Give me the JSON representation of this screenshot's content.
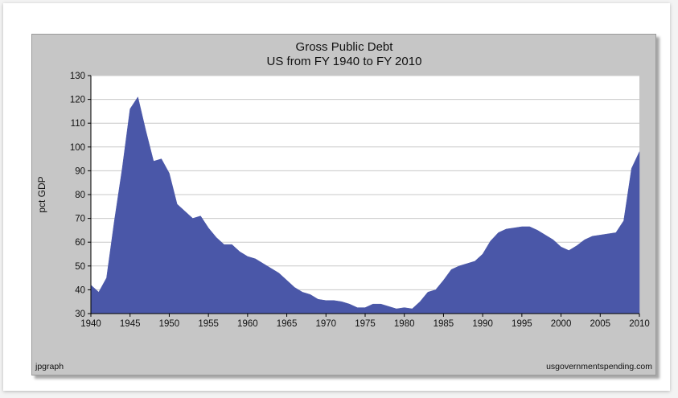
{
  "chart_data": {
    "type": "area",
    "title": "Gross Public Debt",
    "subtitle": "US from FY 1940 to FY 2010",
    "xlabel": "",
    "ylabel": "pct GDP",
    "xlim": [
      1940,
      2010
    ],
    "ylim": [
      30,
      130
    ],
    "x_ticks": [
      1940,
      1945,
      1950,
      1955,
      1960,
      1965,
      1970,
      1975,
      1980,
      1985,
      1990,
      1995,
      2000,
      2005,
      2010
    ],
    "y_ticks": [
      30,
      40,
      50,
      60,
      70,
      80,
      90,
      100,
      110,
      120,
      130
    ],
    "grid": true,
    "legend": "none",
    "fill_color": "#4a57a8",
    "plot_background": "#ffffff",
    "frame_background": "#c6c6c6",
    "series": [
      {
        "x": [
          1940,
          1941,
          1942,
          1943,
          1944,
          1945,
          1946,
          1947,
          1948,
          1949,
          1950,
          1951,
          1952,
          1953,
          1954,
          1955,
          1956,
          1957,
          1958,
          1959,
          1960,
          1961,
          1962,
          1963,
          1964,
          1965,
          1966,
          1967,
          1968,
          1969,
          1970,
          1971,
          1972,
          1973,
          1974,
          1975,
          1976,
          1977,
          1978,
          1979,
          1980,
          1981,
          1982,
          1983,
          1984,
          1985,
          1986,
          1987,
          1988,
          1989,
          1990,
          1991,
          1992,
          1993,
          1994,
          1995,
          1996,
          1997,
          1998,
          1999,
          2000,
          2001,
          2002,
          2003,
          2004,
          2005,
          2006,
          2007,
          2008,
          2009,
          2010
        ],
        "values": [
          42,
          39,
          45,
          69,
          91,
          116,
          121,
          107,
          94,
          95,
          89,
          76,
          73,
          70,
          71,
          66,
          62,
          59,
          59,
          56,
          54,
          53,
          51,
          49,
          47,
          44,
          41,
          39,
          38,
          36,
          35.5,
          35.5,
          35,
          34,
          32.5,
          32.5,
          34,
          34,
          33,
          32,
          32.5,
          32,
          35,
          39,
          40,
          44,
          48.5,
          50,
          51,
          52,
          55,
          60.5,
          64,
          65.5,
          66,
          66.5,
          66.5,
          65,
          63,
          61,
          58,
          56.5,
          58.5,
          61,
          62.5,
          63,
          63.5,
          64,
          69,
          91,
          98
        ]
      }
    ]
  },
  "footer": {
    "left": "jpgraph",
    "right": "usgovernmentspending.com"
  }
}
